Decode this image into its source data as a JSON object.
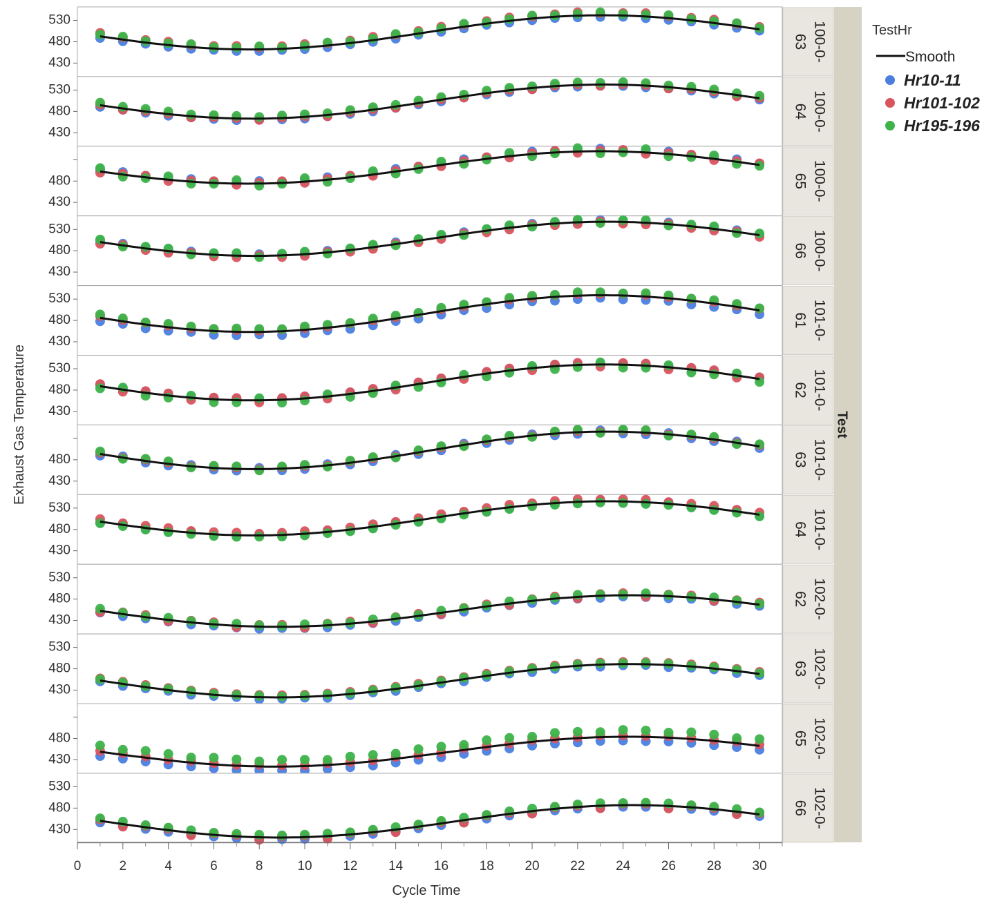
{
  "chart_data": {
    "type": "scatter",
    "title": "",
    "xlabel": "Cycle Time",
    "ylabel": "Exhaust Gas Temperature",
    "xlim": [
      0,
      31
    ],
    "ylim": [
      400,
      560
    ],
    "x_ticks": [
      0,
      2,
      4,
      6,
      8,
      10,
      12,
      14,
      16,
      18,
      20,
      22,
      24,
      26,
      28,
      30
    ],
    "grid": false,
    "group_by_title": "Test",
    "legend": {
      "title": "TestHr",
      "placement": "right",
      "smooth_label": "Smooth",
      "entries": [
        {
          "name": "Hr10-11",
          "color": "#4a7fe0"
        },
        {
          "name": "Hr101-102",
          "color": "#d9545e"
        },
        {
          "name": "Hr195-196",
          "color": "#3db34a"
        }
      ]
    },
    "panels": [
      {
        "strip": [
          "100-0-",
          "63"
        ],
        "y_ticks": [
          530,
          480,
          430
        ],
        "shape": {
          "base": 502,
          "amp": 40,
          "phase": 7.6
        },
        "offsets": [
          [
            -4,
            8,
            4
          ],
          [
            -4,
            5,
            7
          ],
          [
            -3,
            6,
            3
          ]
        ]
      },
      {
        "strip": [
          "100-0-",
          "64"
        ],
        "y_ticks": [
          530,
          480,
          430
        ],
        "shape": {
          "base": 503,
          "amp": 40,
          "phase": 7.7
        },
        "offsets": [
          [
            -4,
            1,
            6
          ],
          [
            -3,
            -3,
            4
          ],
          [
            -3,
            1,
            6
          ]
        ]
      },
      {
        "strip": [
          "100-0-",
          "65"
        ],
        "y_ticks": [
          480,
          430
        ],
        "shape": {
          "base": 512,
          "amp": 38,
          "phase": 7.5
        },
        "offsets": [
          [
            4,
            -3,
            8
          ],
          [
            6,
            2,
            -5
          ],
          [
            3,
            4,
            -2
          ]
        ]
      },
      {
        "strip": [
          "100-0-",
          "66"
        ],
        "y_ticks": [
          530,
          480,
          430
        ],
        "shape": {
          "base": 508,
          "amp": 40,
          "phase": 7.8
        },
        "offsets": [
          [
            3,
            -4,
            6
          ],
          [
            4,
            1,
            -3
          ],
          [
            2,
            -4,
            4
          ]
        ]
      },
      {
        "strip": [
          "101-0-",
          "61"
        ],
        "y_ticks": [
          530,
          480,
          430
        ],
        "shape": {
          "base": 496,
          "amp": 43,
          "phase": 7.6
        },
        "offsets": [
          [
            -8,
            4,
            8
          ],
          [
            -6,
            3,
            7
          ],
          [
            -9,
            4,
            5
          ]
        ]
      },
      {
        "strip": [
          "101-0-",
          "62"
        ],
        "y_ticks": [
          530,
          480,
          430
        ],
        "shape": {
          "base": 498,
          "amp": 42,
          "phase": 7.7
        },
        "offsets": [
          [
            3,
            5,
            -5
          ],
          [
            2,
            -5,
            5
          ],
          [
            3,
            4,
            -7
          ]
        ]
      },
      {
        "strip": [
          "101-0-",
          "63"
        ],
        "y_ticks": [
          480,
          430
        ],
        "shape": {
          "base": 502,
          "amp": 44,
          "phase": 7.8
        },
        "offsets": [
          [
            -4,
            3,
            6
          ],
          [
            3,
            -1,
            -3
          ],
          [
            -4,
            3,
            5
          ]
        ]
      },
      {
        "strip": [
          "101-0-",
          "64"
        ],
        "y_ticks": [
          530,
          480,
          430
        ],
        "shape": {
          "base": 506,
          "amp": 40,
          "phase": 7.8
        },
        "offsets": [
          [
            -2,
            6,
            -4
          ],
          [
            2,
            4,
            -3
          ],
          [
            -2,
            5,
            -4
          ]
        ]
      },
      {
        "strip": [
          "102-0-",
          "62"
        ],
        "y_ticks": [
          530,
          480,
          430
        ],
        "shape": {
          "base": 452,
          "amp": 37,
          "phase": 8.8
        },
        "offsets": [
          [
            -4,
            -3,
            5
          ],
          [
            -5,
            4,
            3
          ],
          [
            -3,
            5,
            2
          ]
        ]
      },
      {
        "strip": [
          "102-0-",
          "63"
        ],
        "y_ticks": [
          530,
          480,
          430
        ],
        "shape": {
          "base": 452,
          "amp": 39,
          "phase": 8.8
        },
        "offsets": [
          [
            -2,
            5,
            3
          ],
          [
            -5,
            5,
            3
          ],
          [
            -3,
            5,
            2
          ]
        ]
      },
      {
        "strip": [
          "102-0-",
          "65"
        ],
        "y_ticks": [
          480,
          430
        ],
        "shape": {
          "base": 449,
          "amp": 35,
          "phase": 8.7
        },
        "offsets": [
          [
            -10,
            2,
            15
          ],
          [
            -9,
            4,
            12
          ],
          [
            -9,
            3,
            16
          ]
        ]
      },
      {
        "strip": [
          "102-0-",
          "66"
        ],
        "y_ticks": [
          530,
          480,
          430
        ],
        "shape": {
          "base": 449,
          "amp": 38,
          "phase": 8.9
        },
        "offsets": [
          [
            -4,
            3,
            6
          ],
          [
            -4,
            -6,
            6
          ],
          [
            -4,
            3,
            5
          ]
        ]
      }
    ]
  }
}
